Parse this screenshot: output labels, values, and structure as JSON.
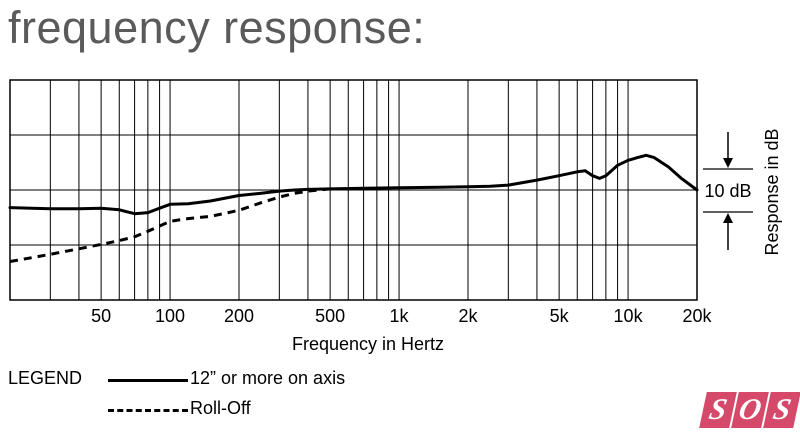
{
  "page_title": "frequency response:",
  "chart_data": {
    "type": "line",
    "title": "frequency response:",
    "xlabel": "Frequency in Hertz",
    "ylabel": "Response in dB",
    "x_scale": "log",
    "xlim": [
      20,
      20000
    ],
    "ylim": [
      -20,
      20
    ],
    "grid": true,
    "x_tick_labels": [
      {
        "value": 50,
        "label": "50"
      },
      {
        "value": 100,
        "label": "100"
      },
      {
        "value": 200,
        "label": "200"
      },
      {
        "value": 500,
        "label": "500"
      },
      {
        "value": 1000,
        "label": "1k"
      },
      {
        "value": 2000,
        "label": "2k"
      },
      {
        "value": 5000,
        "label": "5k"
      },
      {
        "value": 10000,
        "label": "10k"
      },
      {
        "value": 20000,
        "label": "20k"
      }
    ],
    "scale_annotation": "10 dB",
    "series": [
      {
        "name": "12” or more on axis",
        "style": "solid",
        "x": [
          20,
          25,
          30,
          40,
          50,
          60,
          70,
          80,
          90,
          100,
          120,
          150,
          200,
          250,
          300,
          350,
          400,
          500,
          700,
          1000,
          1500,
          2000,
          2500,
          3000,
          4000,
          5000,
          6000,
          6500,
          7000,
          7500,
          8000,
          9000,
          10000,
          11000,
          12000,
          13000,
          15000,
          17000,
          20000
        ],
        "y": [
          -3.2,
          -3.3,
          -3.4,
          -3.4,
          -3.3,
          -3.6,
          -4.3,
          -4.1,
          -3.3,
          -2.6,
          -2.5,
          -2.0,
          -1.0,
          -0.6,
          -0.2,
          0.0,
          0.1,
          0.2,
          0.3,
          0.4,
          0.5,
          0.6,
          0.7,
          0.9,
          1.8,
          2.6,
          3.3,
          3.5,
          2.6,
          2.1,
          2.6,
          4.5,
          5.4,
          5.9,
          6.3,
          5.9,
          4.2,
          2.2,
          0.0
        ]
      },
      {
        "name": "Roll-Off",
        "style": "dashed",
        "x": [
          20,
          25,
          30,
          40,
          50,
          60,
          70,
          80,
          100,
          120,
          150,
          200,
          250,
          300,
          350,
          400,
          500
        ],
        "y": [
          -13.0,
          -12.3,
          -11.7,
          -10.7,
          -9.9,
          -9.2,
          -8.5,
          -7.5,
          -5.7,
          -5.2,
          -4.8,
          -3.7,
          -2.3,
          -1.3,
          -0.6,
          -0.2,
          0.2
        ]
      }
    ]
  },
  "legend": {
    "heading": "LEGEND",
    "entries": [
      {
        "label": "12” or more on axis",
        "style": "solid"
      },
      {
        "label": "Roll-Off",
        "style": "dashed"
      }
    ]
  },
  "logo": {
    "letters": [
      "S",
      "O",
      "S"
    ],
    "color": "#d54a6a"
  }
}
